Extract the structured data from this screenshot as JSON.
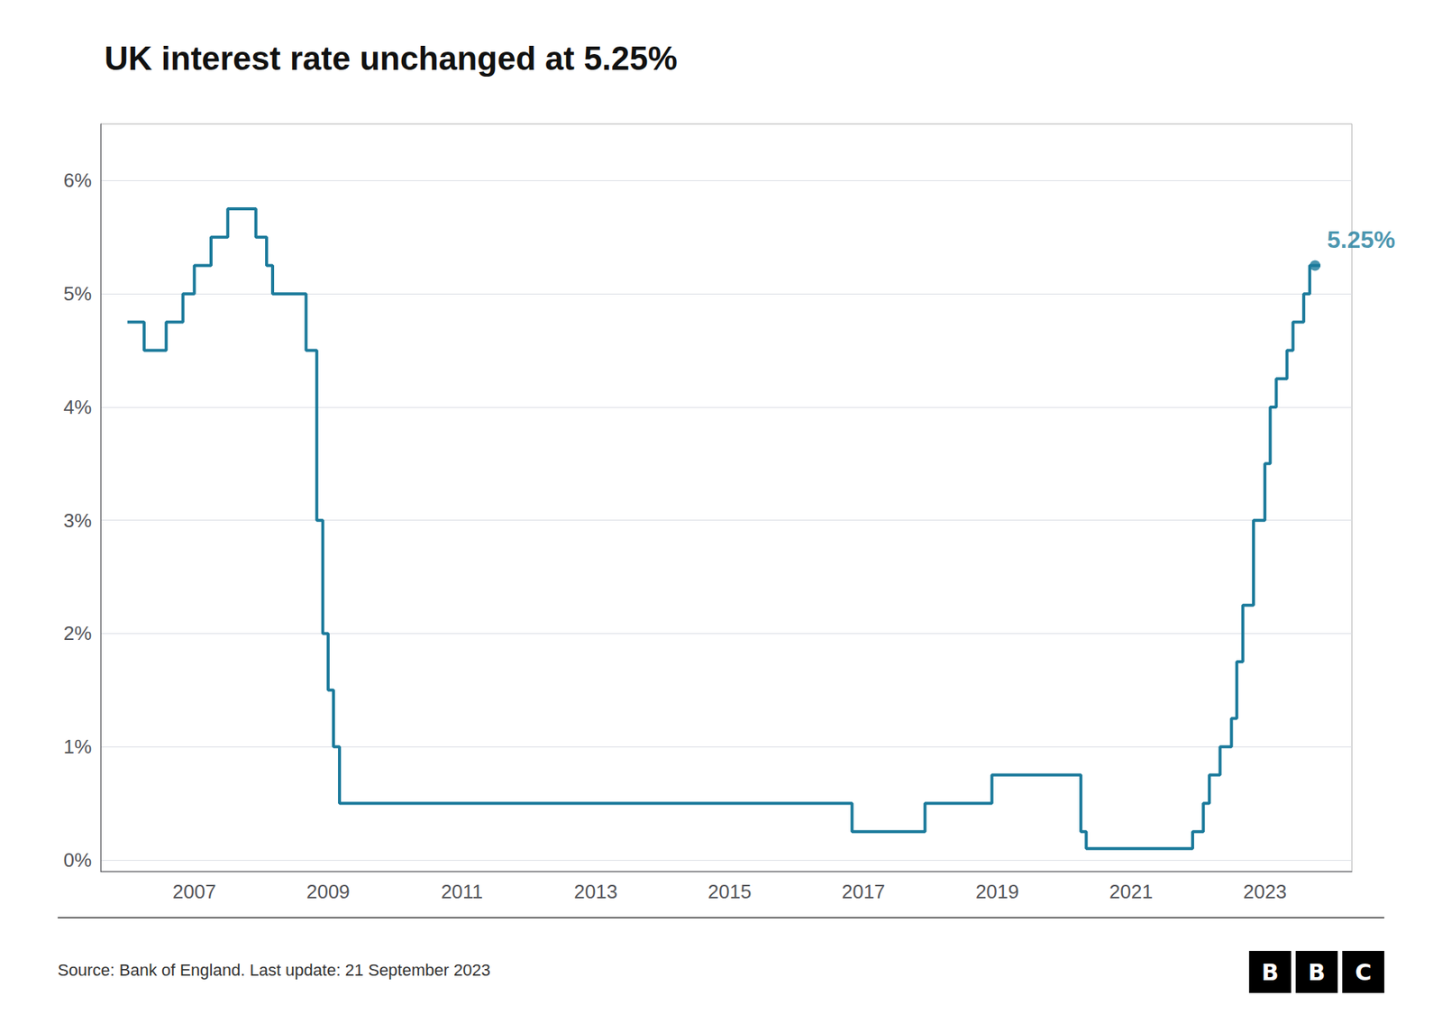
{
  "chart_data": {
    "type": "step",
    "title": "UK interest rate unchanged at 5.25%",
    "source": "Source: Bank of England. Last update: 21 September 2023",
    "logo": "BBC",
    "color": "#1b7a9b",
    "x": [
      2006.0,
      2006.25,
      2006.58,
      2006.83,
      2007.0,
      2007.25,
      2007.5,
      2007.75,
      2007.92,
      2008.08,
      2008.17,
      2008.5,
      2008.67,
      2008.83,
      2008.92,
      2009.0,
      2009.08,
      2009.17,
      2016.67,
      2016.83,
      2017.83,
      2017.92,
      2018.83,
      2018.92,
      2020.17,
      2020.25,
      2020.33,
      2021.92,
      2021.92,
      2022.08,
      2022.17,
      2022.33,
      2022.5,
      2022.58,
      2022.67,
      2022.75,
      2022.83,
      2022.92,
      2023.0,
      2023.08,
      2023.17,
      2023.33,
      2023.42,
      2023.58,
      2023.67,
      2023.83
    ],
    "values": [
      4.75,
      4.5,
      4.75,
      5.0,
      5.25,
      5.5,
      5.75,
      5.75,
      5.5,
      5.25,
      5.0,
      5.0,
      4.5,
      3.0,
      2.0,
      1.5,
      1.0,
      0.5,
      0.5,
      0.25,
      0.25,
      0.5,
      0.5,
      0.75,
      0.75,
      0.25,
      0.1,
      0.1,
      0.25,
      0.5,
      0.75,
      1.0,
      1.25,
      1.75,
      2.25,
      2.25,
      3.0,
      3.0,
      3.5,
      4.0,
      4.25,
      4.5,
      4.75,
      5.0,
      5.25,
      5.25
    ],
    "annotations": [
      {
        "text": "5.25%",
        "x": 2023.75,
        "y": 5.25,
        "color": "#1b7a9b"
      }
    ],
    "xlim": [
      2005.6,
      2024.3
    ],
    "xticks": [
      2007,
      2009,
      2011,
      2013,
      2015,
      2017,
      2019,
      2021,
      2023
    ],
    "ylim": [
      -0.1,
      6.5
    ],
    "yticks": [
      {
        "value": 0,
        "label": "0%"
      },
      {
        "value": 1,
        "label": "1%"
      },
      {
        "value": 2,
        "label": "2%"
      },
      {
        "value": 3,
        "label": "3%"
      },
      {
        "value": 4,
        "label": "4%"
      },
      {
        "value": 5,
        "label": "5%"
      },
      {
        "value": 6,
        "label": "6%"
      }
    ],
    "grid": true
  }
}
